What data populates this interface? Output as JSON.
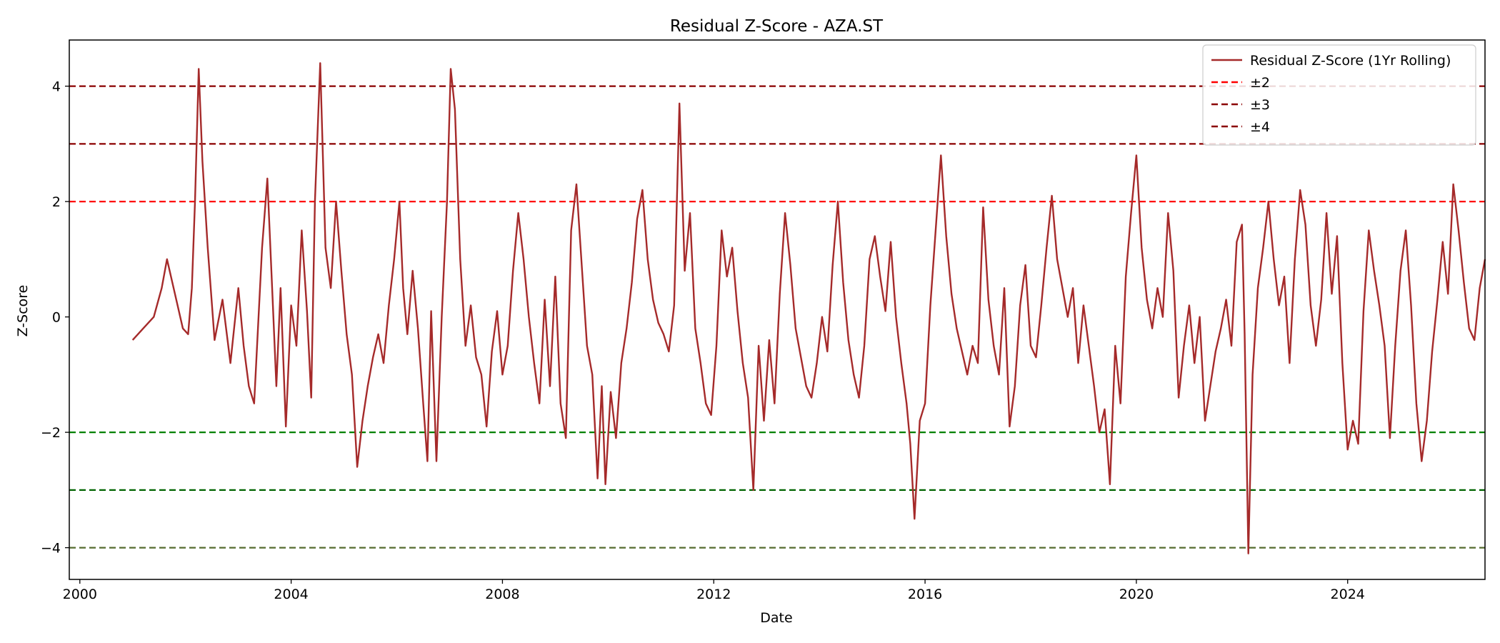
{
  "chart_data": {
    "type": "line",
    "title": "Residual Z-Score - AZA.ST",
    "xlabel": "Date",
    "ylabel": "Z-Score",
    "xlim": [
      1999.8,
      2026.6
    ],
    "ylim": [
      -4.55,
      4.8
    ],
    "x_ticks": [
      2000,
      2004,
      2008,
      2012,
      2016,
      2020,
      2024
    ],
    "x_tick_labels": [
      "2000",
      "2004",
      "2008",
      "2012",
      "2016",
      "2020",
      "2024"
    ],
    "y_ticks": [
      -4,
      -2,
      0,
      2,
      4
    ],
    "y_tick_labels": [
      "−4",
      "−2",
      "0",
      "2",
      "4"
    ],
    "grid": false,
    "legend_position": "top-right",
    "series": [
      {
        "name": "Residual Z-Score (1Yr Rolling)",
        "color": "#a52a2a",
        "points": [
          [
            2001.0,
            -0.4
          ],
          [
            2001.2,
            -0.2
          ],
          [
            2001.4,
            0.0
          ],
          [
            2001.55,
            0.5
          ],
          [
            2001.65,
            1.0
          ],
          [
            2001.75,
            0.6
          ],
          [
            2001.85,
            0.2
          ],
          [
            2001.95,
            -0.2
          ],
          [
            2002.05,
            -0.3
          ],
          [
            2002.12,
            0.5
          ],
          [
            2002.18,
            2.0
          ],
          [
            2002.25,
            4.3
          ],
          [
            2002.32,
            2.7
          ],
          [
            2002.42,
            1.2
          ],
          [
            2002.55,
            -0.4
          ],
          [
            2002.7,
            0.3
          ],
          [
            2002.85,
            -0.8
          ],
          [
            2003.0,
            0.5
          ],
          [
            2003.1,
            -0.5
          ],
          [
            2003.2,
            -1.2
          ],
          [
            2003.3,
            -1.5
          ],
          [
            2003.45,
            1.2
          ],
          [
            2003.55,
            2.4
          ],
          [
            2003.65,
            0.3
          ],
          [
            2003.72,
            -1.2
          ],
          [
            2003.8,
            0.5
          ],
          [
            2003.9,
            -1.9
          ],
          [
            2004.0,
            0.2
          ],
          [
            2004.1,
            -0.5
          ],
          [
            2004.2,
            1.5
          ],
          [
            2004.3,
            0.1
          ],
          [
            2004.38,
            -1.4
          ],
          [
            2004.45,
            2.0
          ],
          [
            2004.55,
            4.4
          ],
          [
            2004.65,
            1.2
          ],
          [
            2004.75,
            0.5
          ],
          [
            2004.85,
            2.0
          ],
          [
            2004.95,
            0.8
          ],
          [
            2005.05,
            -0.3
          ],
          [
            2005.15,
            -1.0
          ],
          [
            2005.25,
            -2.6
          ],
          [
            2005.35,
            -1.8
          ],
          [
            2005.45,
            -1.2
          ],
          [
            2005.55,
            -0.7
          ],
          [
            2005.65,
            -0.3
          ],
          [
            2005.75,
            -0.8
          ],
          [
            2005.85,
            0.2
          ],
          [
            2005.95,
            1.0
          ],
          [
            2006.05,
            2.0
          ],
          [
            2006.12,
            0.5
          ],
          [
            2006.2,
            -0.3
          ],
          [
            2006.3,
            0.8
          ],
          [
            2006.4,
            -0.2
          ],
          [
            2006.5,
            -1.5
          ],
          [
            2006.58,
            -2.5
          ],
          [
            2006.65,
            0.1
          ],
          [
            2006.75,
            -2.5
          ],
          [
            2006.85,
            0.0
          ],
          [
            2006.95,
            2.0
          ],
          [
            2007.02,
            4.3
          ],
          [
            2007.1,
            3.6
          ],
          [
            2007.2,
            1.0
          ],
          [
            2007.3,
            -0.5
          ],
          [
            2007.4,
            0.2
          ],
          [
            2007.5,
            -0.7
          ],
          [
            2007.6,
            -1.0
          ],
          [
            2007.7,
            -1.9
          ],
          [
            2007.8,
            -0.6
          ],
          [
            2007.9,
            0.1
          ],
          [
            2008.0,
            -1.0
          ],
          [
            2008.1,
            -0.5
          ],
          [
            2008.2,
            0.8
          ],
          [
            2008.3,
            1.8
          ],
          [
            2008.4,
            1.0
          ],
          [
            2008.5,
            0.0
          ],
          [
            2008.6,
            -0.8
          ],
          [
            2008.7,
            -1.5
          ],
          [
            2008.8,
            0.3
          ],
          [
            2008.9,
            -1.2
          ],
          [
            2009.0,
            0.7
          ],
          [
            2009.1,
            -1.5
          ],
          [
            2009.2,
            -2.1
          ],
          [
            2009.3,
            1.5
          ],
          [
            2009.4,
            2.3
          ],
          [
            2009.5,
            0.9
          ],
          [
            2009.6,
            -0.5
          ],
          [
            2009.7,
            -1.0
          ],
          [
            2009.8,
            -2.8
          ],
          [
            2009.88,
            -1.2
          ],
          [
            2009.95,
            -2.9
          ],
          [
            2010.05,
            -1.3
          ],
          [
            2010.15,
            -2.1
          ],
          [
            2010.25,
            -0.8
          ],
          [
            2010.35,
            -0.2
          ],
          [
            2010.45,
            0.6
          ],
          [
            2010.55,
            1.7
          ],
          [
            2010.65,
            2.2
          ],
          [
            2010.75,
            1.0
          ],
          [
            2010.85,
            0.3
          ],
          [
            2010.95,
            -0.1
          ],
          [
            2011.05,
            -0.3
          ],
          [
            2011.15,
            -0.6
          ],
          [
            2011.25,
            0.2
          ],
          [
            2011.35,
            3.7
          ],
          [
            2011.45,
            0.8
          ],
          [
            2011.55,
            1.8
          ],
          [
            2011.65,
            -0.2
          ],
          [
            2011.75,
            -0.8
          ],
          [
            2011.85,
            -1.5
          ],
          [
            2011.95,
            -1.7
          ],
          [
            2012.05,
            -0.5
          ],
          [
            2012.15,
            1.5
          ],
          [
            2012.25,
            0.7
          ],
          [
            2012.35,
            1.2
          ],
          [
            2012.45,
            0.1
          ],
          [
            2012.55,
            -0.8
          ],
          [
            2012.65,
            -1.4
          ],
          [
            2012.75,
            -3.0
          ],
          [
            2012.85,
            -0.5
          ],
          [
            2012.95,
            -1.8
          ],
          [
            2013.05,
            -0.4
          ],
          [
            2013.15,
            -1.5
          ],
          [
            2013.25,
            0.4
          ],
          [
            2013.35,
            1.8
          ],
          [
            2013.45,
            0.9
          ],
          [
            2013.55,
            -0.2
          ],
          [
            2013.65,
            -0.7
          ],
          [
            2013.75,
            -1.2
          ],
          [
            2013.85,
            -1.4
          ],
          [
            2013.95,
            -0.8
          ],
          [
            2014.05,
            0.0
          ],
          [
            2014.15,
            -0.6
          ],
          [
            2014.25,
            0.9
          ],
          [
            2014.35,
            2.0
          ],
          [
            2014.45,
            0.6
          ],
          [
            2014.55,
            -0.4
          ],
          [
            2014.65,
            -1.0
          ],
          [
            2014.75,
            -1.4
          ],
          [
            2014.85,
            -0.5
          ],
          [
            2014.95,
            1.0
          ],
          [
            2015.05,
            1.4
          ],
          [
            2015.15,
            0.7
          ],
          [
            2015.25,
            0.1
          ],
          [
            2015.35,
            1.3
          ],
          [
            2015.45,
            0.0
          ],
          [
            2015.55,
            -0.8
          ],
          [
            2015.65,
            -1.5
          ],
          [
            2015.72,
            -2.2
          ],
          [
            2015.8,
            -3.5
          ],
          [
            2015.9,
            -1.8
          ],
          [
            2016.0,
            -1.5
          ],
          [
            2016.1,
            0.2
          ],
          [
            2016.2,
            1.5
          ],
          [
            2016.3,
            2.8
          ],
          [
            2016.4,
            1.4
          ],
          [
            2016.5,
            0.4
          ],
          [
            2016.6,
            -0.2
          ],
          [
            2016.7,
            -0.6
          ],
          [
            2016.8,
            -1.0
          ],
          [
            2016.9,
            -0.5
          ],
          [
            2017.0,
            -0.8
          ],
          [
            2017.1,
            1.9
          ],
          [
            2017.2,
            0.3
          ],
          [
            2017.3,
            -0.5
          ],
          [
            2017.4,
            -1.0
          ],
          [
            2017.5,
            0.5
          ],
          [
            2017.6,
            -1.9
          ],
          [
            2017.7,
            -1.2
          ],
          [
            2017.8,
            0.2
          ],
          [
            2017.9,
            0.9
          ],
          [
            2018.0,
            -0.5
          ],
          [
            2018.1,
            -0.7
          ],
          [
            2018.2,
            0.2
          ],
          [
            2018.3,
            1.2
          ],
          [
            2018.4,
            2.1
          ],
          [
            2018.5,
            1.0
          ],
          [
            2018.6,
            0.5
          ],
          [
            2018.7,
            0.0
          ],
          [
            2018.8,
            0.5
          ],
          [
            2018.9,
            -0.8
          ],
          [
            2019.0,
            0.2
          ],
          [
            2019.1,
            -0.5
          ],
          [
            2019.2,
            -1.2
          ],
          [
            2019.3,
            -2.0
          ],
          [
            2019.4,
            -1.6
          ],
          [
            2019.5,
            -2.9
          ],
          [
            2019.6,
            -0.5
          ],
          [
            2019.7,
            -1.5
          ],
          [
            2019.8,
            0.7
          ],
          [
            2019.9,
            1.8
          ],
          [
            2020.0,
            2.8
          ],
          [
            2020.1,
            1.2
          ],
          [
            2020.2,
            0.3
          ],
          [
            2020.3,
            -0.2
          ],
          [
            2020.4,
            0.5
          ],
          [
            2020.5,
            0.0
          ],
          [
            2020.6,
            1.8
          ],
          [
            2020.7,
            0.8
          ],
          [
            2020.8,
            -1.4
          ],
          [
            2020.9,
            -0.5
          ],
          [
            2021.0,
            0.2
          ],
          [
            2021.1,
            -0.8
          ],
          [
            2021.2,
            0.0
          ],
          [
            2021.3,
            -1.8
          ],
          [
            2021.4,
            -1.2
          ],
          [
            2021.5,
            -0.6
          ],
          [
            2021.6,
            -0.2
          ],
          [
            2021.7,
            0.3
          ],
          [
            2021.8,
            -0.5
          ],
          [
            2021.9,
            1.3
          ],
          [
            2022.0,
            1.6
          ],
          [
            2022.05,
            -0.3
          ],
          [
            2022.12,
            -4.1
          ],
          [
            2022.2,
            -1.0
          ],
          [
            2022.3,
            0.5
          ],
          [
            2022.4,
            1.2
          ],
          [
            2022.5,
            2.0
          ],
          [
            2022.6,
            1.0
          ],
          [
            2022.7,
            0.2
          ],
          [
            2022.8,
            0.7
          ],
          [
            2022.9,
            -0.8
          ],
          [
            2023.0,
            1.0
          ],
          [
            2023.1,
            2.2
          ],
          [
            2023.2,
            1.6
          ],
          [
            2023.3,
            0.2
          ],
          [
            2023.4,
            -0.5
          ],
          [
            2023.5,
            0.3
          ],
          [
            2023.6,
            1.8
          ],
          [
            2023.7,
            0.4
          ],
          [
            2023.8,
            1.4
          ],
          [
            2023.9,
            -0.8
          ],
          [
            2024.0,
            -2.3
          ],
          [
            2024.1,
            -1.8
          ],
          [
            2024.2,
            -2.2
          ],
          [
            2024.3,
            0.1
          ],
          [
            2024.4,
            1.5
          ],
          [
            2024.5,
            0.8
          ],
          [
            2024.6,
            0.2
          ],
          [
            2024.7,
            -0.5
          ],
          [
            2024.8,
            -2.1
          ],
          [
            2024.9,
            -0.5
          ],
          [
            2025.0,
            0.8
          ],
          [
            2025.1,
            1.5
          ],
          [
            2025.2,
            0.2
          ],
          [
            2025.3,
            -1.5
          ],
          [
            2025.4,
            -2.5
          ],
          [
            2025.5,
            -1.8
          ],
          [
            2025.6,
            -0.6
          ],
          [
            2025.7,
            0.3
          ],
          [
            2025.8,
            1.3
          ],
          [
            2025.9,
            0.4
          ],
          [
            2026.0,
            2.3
          ],
          [
            2026.1,
            1.5
          ],
          [
            2026.2,
            0.6
          ],
          [
            2026.3,
            -0.2
          ],
          [
            2026.4,
            -0.4
          ],
          [
            2026.5,
            0.5
          ],
          [
            2026.6,
            1.0
          ]
        ]
      }
    ],
    "hlines": [
      {
        "y": 4,
        "color": "#8b0000"
      },
      {
        "y": 3,
        "color": "#8b0000"
      },
      {
        "y": 2,
        "color": "#ff0000"
      },
      {
        "y": -2,
        "color": "#008000"
      },
      {
        "y": -3,
        "color": "#006400"
      },
      {
        "y": -4,
        "color": "#556b2f"
      }
    ],
    "legend": [
      {
        "label": "Residual Z-Score (1Yr Rolling)",
        "style": "solid",
        "color": "#a52a2a"
      },
      {
        "label": "±2",
        "style": "dashed",
        "color": "#ff0000"
      },
      {
        "label": "±3",
        "style": "dashed",
        "color": "#8b0000"
      },
      {
        "label": "±4",
        "style": "dashed",
        "color": "#8b0000"
      }
    ]
  }
}
